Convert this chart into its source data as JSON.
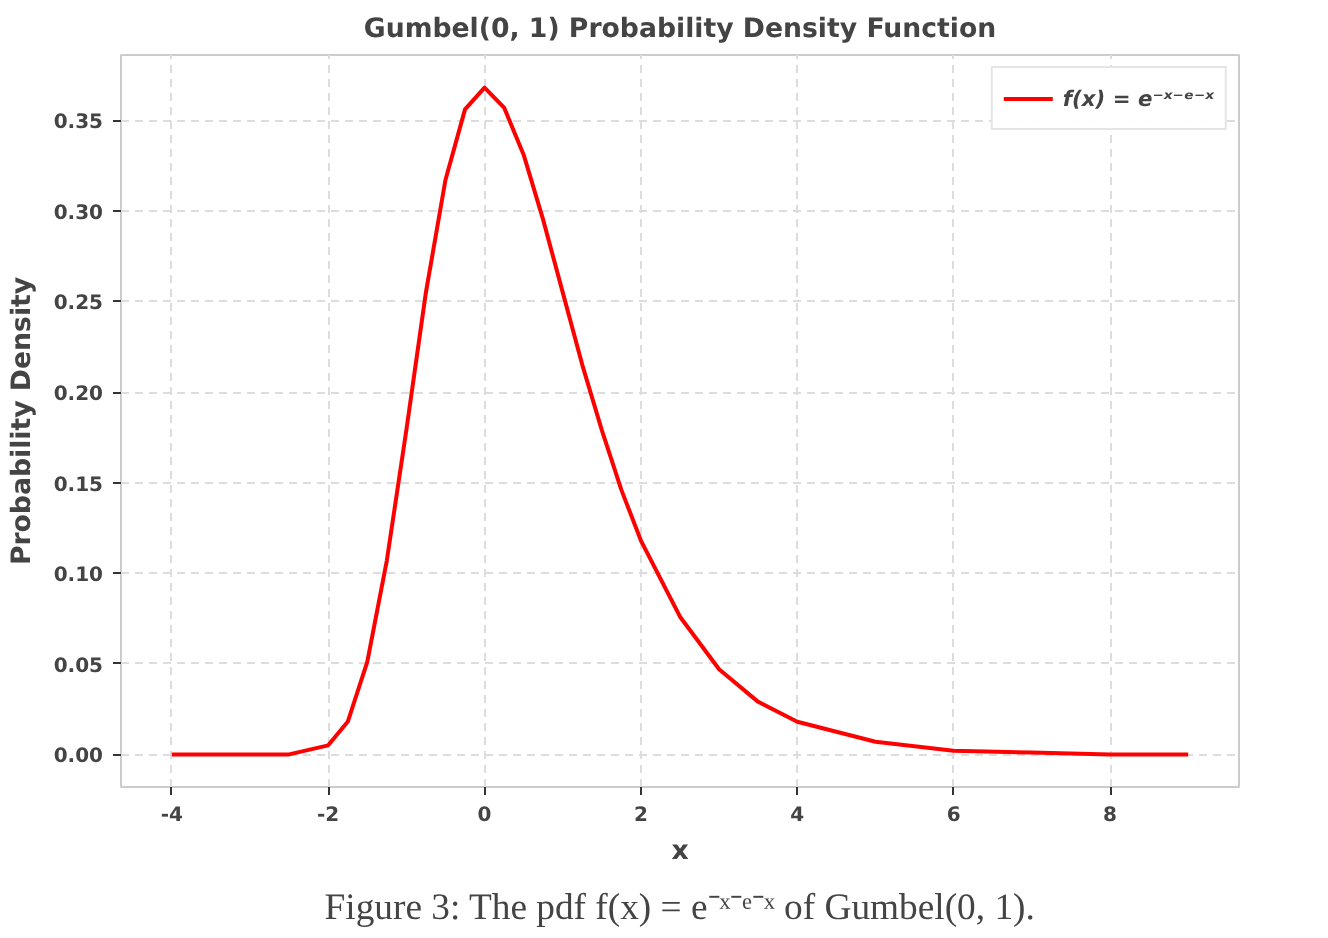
{
  "chart_data": {
    "type": "line",
    "title": "Gumbel(0, 1) Probability Density Function",
    "xlabel": "x",
    "ylabel": "Probability Density",
    "x": [
      -4,
      -3,
      -2.5,
      -2,
      -1.75,
      -1.5,
      -1.25,
      -1,
      -0.75,
      -0.5,
      -0.25,
      0,
      0.25,
      0.5,
      0.75,
      1,
      1.25,
      1.5,
      1.75,
      2,
      2.5,
      3,
      3.5,
      4,
      5,
      6,
      7,
      8,
      9
    ],
    "series": [
      {
        "name": "f(x) = e⁻ˣ⁻ᵉ⁻ˣ",
        "color": "#ff0000",
        "values": [
          0,
          0,
          0,
          0.005,
          0.018,
          0.051,
          0.107,
          0.179,
          0.255,
          0.317,
          0.356,
          0.368,
          0.357,
          0.331,
          0.295,
          0.255,
          0.215,
          0.179,
          0.146,
          0.118,
          0.076,
          0.047,
          0.029,
          0.018,
          0.007,
          0.002,
          0.001,
          0.0,
          0.0
        ]
      }
    ],
    "xlim": [
      -4.65,
      9.65
    ],
    "ylim": [
      -0.018,
      0.386
    ],
    "xticks": [
      -4,
      -2,
      0,
      2,
      4,
      6,
      8
    ],
    "yticks": [
      {
        "value": 0,
        "label": "0.00"
      },
      {
        "value": 0.05,
        "label": "0.05"
      },
      {
        "value": 0.1,
        "label": "0.10"
      },
      {
        "value": 0.15,
        "label": "0.15"
      },
      {
        "value": 0.2,
        "label": "0.20"
      },
      {
        "value": 0.25,
        "label": "0.25"
      },
      {
        "value": 0.3,
        "label": "0.30"
      },
      {
        "value": 0.35,
        "label": "0.35"
      }
    ],
    "grid": true,
    "legend": "top right",
    "line_style": "solid",
    "annotations": [
      "Figure 3: The pdf f(x) = e⁻ˣ⁻ᵉ⁻ˣ of Gumbel(0, 1)."
    ]
  }
}
